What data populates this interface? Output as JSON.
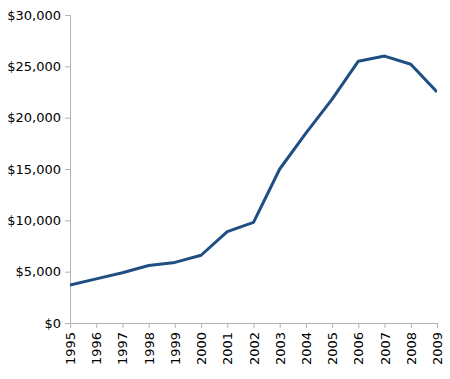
{
  "chart_data": {
    "type": "line",
    "categories": [
      "1995",
      "1996",
      "1997",
      "1998",
      "1999",
      "2000",
      "2001",
      "2002",
      "2003",
      "2004",
      "2005",
      "2006",
      "2007",
      "2008",
      "2009"
    ],
    "values": [
      3700,
      4300,
      4900,
      5600,
      5900,
      6600,
      8900,
      9800,
      15000,
      18500,
      21800,
      25500,
      26000,
      25200,
      22500
    ],
    "color": "#1f4e82",
    "ylim": [
      0,
      30000
    ],
    "yticks": [
      {
        "value": 0,
        "label": "$0"
      },
      {
        "value": 5000,
        "label": "$5,000"
      },
      {
        "value": 10000,
        "label": "$10,000"
      },
      {
        "value": 15000,
        "label": "$15,000"
      },
      {
        "value": 20000,
        "label": "$20,000"
      },
      {
        "value": 25000,
        "label": "$25,000"
      },
      {
        "value": 30000,
        "label": "$30,000"
      }
    ],
    "grid": false
  }
}
